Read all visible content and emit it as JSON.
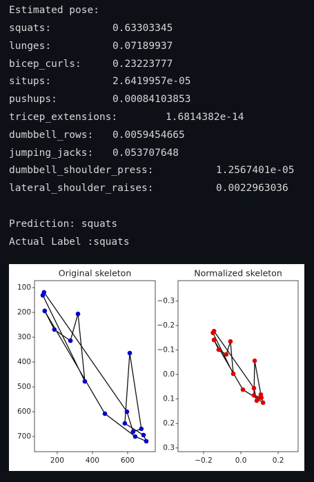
{
  "output": {
    "heading": "Estimated pose:",
    "scores": [
      {
        "label": "squats:",
        "value": "0.63303345"
      },
      {
        "label": "lunges:",
        "value": "0.07189937"
      },
      {
        "label": "bicep_curls:",
        "value": "0.23223777"
      },
      {
        "label": "situps:",
        "value": "2.6419957e-05"
      },
      {
        "label": "pushups:",
        "value": "0.00084103853"
      },
      {
        "label": "tricep_extensions:",
        "value": "1.6814382e-14"
      },
      {
        "label": "dumbbell_rows:",
        "value": "0.0059454665"
      },
      {
        "label": "jumping_jacks:",
        "value": "0.053707648"
      },
      {
        "label": "dumbbell_shoulder_press:",
        "value": "1.2567401e-05"
      },
      {
        "label": "lateral_shoulder_raises:",
        "value": "0.0022963036"
      }
    ],
    "prediction": "Prediction: squats",
    "actual": "Actual Label :squats"
  },
  "chart_data": [
    {
      "type": "line",
      "title": "Original skeleton",
      "color": "#0000cc",
      "markers": true,
      "y_inverted": true,
      "x": [
        129,
        184,
        275,
        318,
        357,
        118,
        125,
        596,
        631,
        678,
        612,
        584,
        690,
        706,
        643,
        471,
        129
      ],
      "values": [
        194,
        269,
        314,
        206,
        478,
        131,
        119,
        600,
        681,
        669,
        364,
        647,
        694,
        719,
        700,
        608,
        194
      ],
      "xlim": [
        71,
        757
      ],
      "ylim": [
        72,
        761
      ],
      "xticks": [
        200,
        400,
        600
      ],
      "yticks": [
        100,
        200,
        300,
        400,
        500,
        600,
        700
      ]
    },
    {
      "type": "line",
      "title": "Normalized skeleton",
      "color": "#dd0000",
      "markers": true,
      "y_inverted": true,
      "x": [
        -0.144,
        -0.119,
        -0.078,
        -0.056,
        -0.041,
        -0.15,
        -0.144,
        0.07,
        0.085,
        0.107,
        0.074,
        0.07,
        0.11,
        0.119,
        0.09,
        0.011,
        -0.144
      ],
      "values": [
        -0.141,
        -0.101,
        -0.082,
        -0.135,
        -0.003,
        -0.17,
        -0.177,
        0.056,
        0.107,
        0.082,
        -0.056,
        0.085,
        0.095,
        0.115,
        0.1,
        0.062,
        -0.141
      ],
      "xlim": [
        -0.337,
        0.307
      ],
      "ylim": [
        -0.383,
        0.315
      ],
      "xticks": [
        {
          "value": -0.2,
          "label": "−0.2"
        },
        {
          "value": 0,
          "label": "0.0"
        },
        0.2
      ],
      "yticks": [
        {
          "value": -0.3,
          "label": "−0.3"
        },
        {
          "value": -0.2,
          "label": "−0.2"
        },
        {
          "value": -0.1,
          "label": "−0.1"
        },
        {
          "value": 0,
          "label": "0.0"
        },
        0.1,
        0.2,
        0.3
      ]
    }
  ]
}
